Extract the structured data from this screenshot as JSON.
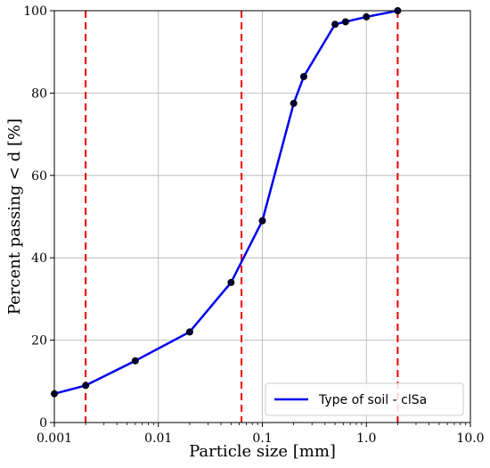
{
  "chart_data": {
    "type": "line",
    "xscale": "log",
    "xlim": [
      0.001,
      10.0
    ],
    "ylim": [
      0,
      100
    ],
    "xticks": [
      0.001,
      0.01,
      0.1,
      1.0,
      10.0
    ],
    "xtick_labels": [
      "0.001",
      "0.01",
      "0.1",
      "1.0",
      "10.0"
    ],
    "yticks": [
      0,
      20,
      40,
      60,
      80,
      100
    ],
    "ytick_labels": [
      "0",
      "20",
      "40",
      "60",
      "80",
      "100"
    ],
    "xlabel": "Particle size [mm]",
    "ylabel": "Percent passing < d [%]",
    "grid": true,
    "legend_position": "bottom-right",
    "series": [
      {
        "name": "Type of soil - clSa",
        "color": "#0000ee",
        "marker_color": "#000033",
        "x": [
          0.001,
          0.002,
          0.006,
          0.02,
          0.05,
          0.1,
          0.2,
          0.25,
          0.5,
          0.63,
          1.0,
          2.0
        ],
        "y": [
          7,
          9,
          15,
          22,
          34,
          49,
          77.5,
          84,
          96.7,
          97.3,
          98.5,
          100
        ]
      }
    ],
    "reference_lines": [
      {
        "x": 0.002,
        "color": "#ee0000",
        "style": "dashed"
      },
      {
        "x": 0.063,
        "color": "#ee0000",
        "style": "dashed"
      },
      {
        "x": 2.0,
        "color": "#ee0000",
        "style": "dashed"
      }
    ]
  }
}
